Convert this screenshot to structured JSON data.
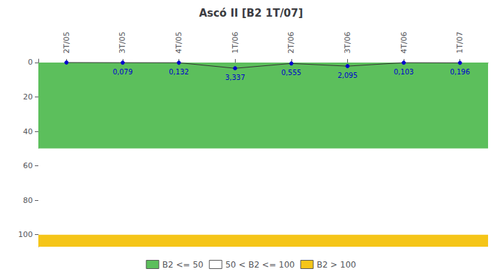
{
  "chart_data": {
    "type": "line",
    "title": "Ascó II [B2 1T/07]",
    "categories": [
      "2T/05",
      "3T/05",
      "4T/05",
      "1T/06",
      "2T/06",
      "3T/06",
      "4T/06",
      "1T/07"
    ],
    "values": [
      0.0,
      0.079,
      0.132,
      3.337,
      0.555,
      2.095,
      0.103,
      0.196
    ],
    "value_labels": [
      null,
      "0,079",
      "0,132",
      "3,337",
      "0,555",
      "2,095",
      "0,103",
      "0,196"
    ],
    "data_labels": true,
    "color": "#333333",
    "colors": [
      "#0000cc",
      "#0000cc",
      "#0000cc",
      "#0000cc",
      "#0000cc",
      "#0000cc",
      "#0000cc",
      "#0000cc"
    ],
    "marker": "circle",
    "ylim": [
      107,
      -2
    ],
    "yticks": [
      0,
      20,
      40,
      60,
      80,
      100
    ],
    "grid": false,
    "legend": "bottom",
    "zones": [
      {
        "name": "B2 <= 50",
        "color": "#5cbf5c",
        "range": [
          0,
          50
        ]
      },
      {
        "name": "50 < B2 <= 100",
        "color": "#ffffff",
        "range": [
          50,
          100
        ]
      },
      {
        "name": "B2 > 100",
        "color": "#f5c518",
        "range": [
          100,
          107
        ]
      }
    ]
  }
}
